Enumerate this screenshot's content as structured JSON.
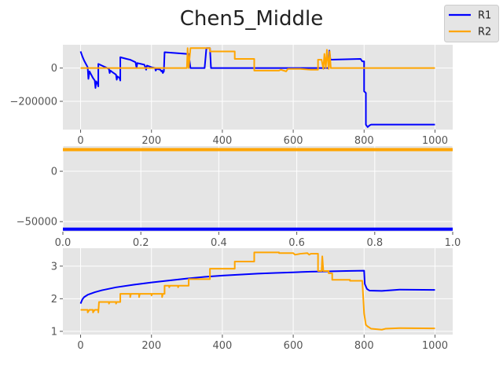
{
  "figure": {
    "title": "Chen5_Middle"
  },
  "legend": {
    "placement": "top-right",
    "entries": [
      {
        "name": "R1",
        "color": "#0000ff"
      },
      {
        "name": "R2",
        "color": "#ffa500"
      }
    ]
  },
  "chart_data": [
    {
      "type": "line",
      "panel": "top",
      "xlim": [
        -50,
        1050
      ],
      "ylim": [
        -370000,
        140000
      ],
      "xticks": [
        0,
        200,
        400,
        600,
        800,
        1000
      ],
      "yticks": [
        0,
        -200000
      ],
      "ytick_labels": [
        "0",
        "−200000"
      ],
      "grid": true,
      "series": [
        {
          "name": "R1",
          "color": "#0000ff",
          "points": [
            [
              0,
              100000
            ],
            [
              5,
              70000
            ],
            [
              10,
              45000
            ],
            [
              15,
              25000
            ],
            [
              20,
              5000
            ],
            [
              22,
              -65000
            ],
            [
              25,
              -20000
            ],
            [
              30,
              -40000
            ],
            [
              35,
              -60000
            ],
            [
              40,
              -75000
            ],
            [
              42,
              -120000
            ],
            [
              44,
              -80000
            ],
            [
              48,
              -95000
            ],
            [
              50,
              -110000
            ],
            [
              50,
              25000
            ],
            [
              60,
              15000
            ],
            [
              70,
              5000
            ],
            [
              80,
              -5000
            ],
            [
              82,
              -30000
            ],
            [
              84,
              -15000
            ],
            [
              90,
              -25000
            ],
            [
              100,
              -40000
            ],
            [
              102,
              -70000
            ],
            [
              104,
              -50000
            ],
            [
              110,
              -60000
            ],
            [
              112,
              -75000
            ],
            [
              112,
              65000
            ],
            [
              130,
              55000
            ],
            [
              140,
              50000
            ],
            [
              145,
              45000
            ],
            [
              150,
              40000
            ],
            [
              155,
              35000
            ],
            [
              158,
              0
            ],
            [
              160,
              30000
            ],
            [
              180,
              20000
            ],
            [
              185,
              -10000
            ],
            [
              187,
              15000
            ],
            [
              200,
              5000
            ],
            [
              210,
              0
            ],
            [
              212,
              -15000
            ],
            [
              215,
              -5000
            ],
            [
              225,
              -10000
            ],
            [
              228,
              -20000
            ],
            [
              230,
              -15000
            ],
            [
              232,
              -30000
            ],
            [
              235,
              -20000
            ],
            [
              237,
              95000
            ],
            [
              300,
              85000
            ],
            [
              305,
              85000
            ],
            [
              310,
              0
            ],
            [
              350,
              0
            ],
            [
              355,
              120000
            ],
            [
              365,
              120000
            ],
            [
              368,
              0
            ],
            [
              700,
              0
            ],
            [
              702,
              105000
            ],
            [
              705,
              50000
            ],
            [
              790,
              55000
            ],
            [
              795,
              40000
            ],
            [
              800,
              40000
            ],
            [
              800,
              -140000
            ],
            [
              805,
              -150000
            ],
            [
              805,
              -340000
            ],
            [
              810,
              -355000
            ],
            [
              815,
              -345000
            ],
            [
              820,
              -340000
            ],
            [
              1000,
              -340000
            ]
          ]
        },
        {
          "name": "R2",
          "color": "#ffa500",
          "points": [
            [
              0,
              0
            ],
            [
              300,
              0
            ],
            [
              302,
              120000
            ],
            [
              305,
              0
            ],
            [
              310,
              120000
            ],
            [
              365,
              120000
            ],
            [
              365,
              100000
            ],
            [
              435,
              100000
            ],
            [
              435,
              55000
            ],
            [
              460,
              55000
            ],
            [
              480,
              55000
            ],
            [
              490,
              55000
            ],
            [
              490,
              -15000
            ],
            [
              560,
              -15000
            ],
            [
              565,
              -10000
            ],
            [
              580,
              -20000
            ],
            [
              585,
              -5000
            ],
            [
              620,
              -5000
            ],
            [
              650,
              -10000
            ],
            [
              670,
              -10000
            ],
            [
              670,
              50000
            ],
            [
              680,
              50000
            ],
            [
              685,
              -5000
            ],
            [
              688,
              85000
            ],
            [
              692,
              0
            ],
            [
              695,
              110000
            ],
            [
              700,
              -5000
            ],
            [
              703,
              100000
            ],
            [
              706,
              0
            ],
            [
              710,
              0
            ],
            [
              1000,
              0
            ]
          ]
        }
      ]
    },
    {
      "type": "line",
      "panel": "middle",
      "xlim": [
        0,
        1
      ],
      "ylim": [
        -60000,
        25000
      ],
      "xticks": [
        0,
        0.2,
        0.4,
        0.6,
        0.8,
        1
      ],
      "xtick_labels": [
        "0.0",
        "0.2",
        "0.4",
        "0.6",
        "0.8",
        "1.0"
      ],
      "yticks": [
        0,
        -50000
      ],
      "ytick_labels": [
        "0",
        "−50000"
      ],
      "grid": true,
      "series": [
        {
          "name": "R1",
          "color": "#0000ff",
          "points": [
            [
              0,
              -57500
            ],
            [
              1,
              -57500
            ]
          ]
        },
        {
          "name": "R2",
          "color": "#ffa500",
          "points": [
            [
              0,
              21500
            ],
            [
              1,
              21500
            ]
          ]
        }
      ]
    },
    {
      "type": "line",
      "panel": "bottom",
      "xlim": [
        -50,
        1050
      ],
      "ylim": [
        0.9,
        3.55
      ],
      "xticks": [
        0,
        200,
        400,
        600,
        800,
        1000
      ],
      "yticks": [
        1,
        2,
        3
      ],
      "grid": true,
      "series": [
        {
          "name": "R1",
          "color": "#0000ff",
          "points": [
            [
              0,
              1.85
            ],
            [
              5,
              1.98
            ],
            [
              10,
              2.05
            ],
            [
              20,
              2.12
            ],
            [
              40,
              2.2
            ],
            [
              60,
              2.26
            ],
            [
              100,
              2.35
            ],
            [
              150,
              2.43
            ],
            [
              200,
              2.5
            ],
            [
              250,
              2.56
            ],
            [
              300,
              2.62
            ],
            [
              350,
              2.67
            ],
            [
              400,
              2.71
            ],
            [
              450,
              2.74
            ],
            [
              500,
              2.77
            ],
            [
              550,
              2.79
            ],
            [
              600,
              2.81
            ],
            [
              650,
              2.83
            ],
            [
              700,
              2.84
            ],
            [
              750,
              2.85
            ],
            [
              800,
              2.86
            ],
            [
              802,
              2.45
            ],
            [
              808,
              2.3
            ],
            [
              815,
              2.25
            ],
            [
              850,
              2.24
            ],
            [
              900,
              2.28
            ],
            [
              1000,
              2.27
            ]
          ]
        },
        {
          "name": "R2",
          "color": "#ffa500",
          "points": [
            [
              0,
              1.66
            ],
            [
              20,
              1.66
            ],
            [
              20,
              1.58
            ],
            [
              25,
              1.66
            ],
            [
              35,
              1.66
            ],
            [
              35,
              1.58
            ],
            [
              40,
              1.66
            ],
            [
              50,
              1.66
            ],
            [
              50,
              1.58
            ],
            [
              52,
              1.9
            ],
            [
              80,
              1.9
            ],
            [
              80,
              1.85
            ],
            [
              82,
              1.9
            ],
            [
              100,
              1.9
            ],
            [
              100,
              1.85
            ],
            [
              102,
              1.9
            ],
            [
              112,
              1.9
            ],
            [
              112,
              2.15
            ],
            [
              140,
              2.15
            ],
            [
              140,
              2.05
            ],
            [
              142,
              2.15
            ],
            [
              165,
              2.15
            ],
            [
              165,
              2.05
            ],
            [
              167,
              2.15
            ],
            [
              200,
              2.15
            ],
            [
              200,
              2.1
            ],
            [
              202,
              2.15
            ],
            [
              230,
              2.15
            ],
            [
              230,
              2.05
            ],
            [
              232,
              2.15
            ],
            [
              237,
              2.15
            ],
            [
              237,
              2.4
            ],
            [
              250,
              2.4
            ],
            [
              250,
              2.35
            ],
            [
              252,
              2.4
            ],
            [
              275,
              2.4
            ],
            [
              275,
              2.35
            ],
            [
              277,
              2.4
            ],
            [
              300,
              2.4
            ],
            [
              305,
              2.4
            ],
            [
              305,
              2.6
            ],
            [
              365,
              2.6
            ],
            [
              365,
              2.92
            ],
            [
              435,
              2.92
            ],
            [
              435,
              3.14
            ],
            [
              490,
              3.14
            ],
            [
              490,
              3.42
            ],
            [
              560,
              3.42
            ],
            [
              560,
              3.4
            ],
            [
              600,
              3.4
            ],
            [
              605,
              3.35
            ],
            [
              620,
              3.38
            ],
            [
              640,
              3.4
            ],
            [
              645,
              3.35
            ],
            [
              650,
              3.38
            ],
            [
              670,
              3.38
            ],
            [
              670,
              2.85
            ],
            [
              680,
              2.85
            ],
            [
              682,
              3.3
            ],
            [
              685,
              2.85
            ],
            [
              700,
              2.85
            ],
            [
              700,
              2.78
            ],
            [
              710,
              2.78
            ],
            [
              710,
              2.58
            ],
            [
              760,
              2.58
            ],
            [
              760,
              2.55
            ],
            [
              795,
              2.55
            ],
            [
              800,
              1.55
            ],
            [
              805,
              1.2
            ],
            [
              810,
              1.15
            ],
            [
              820,
              1.08
            ],
            [
              850,
              1.05
            ],
            [
              860,
              1.08
            ],
            [
              900,
              1.1
            ],
            [
              1000,
              1.09
            ]
          ]
        }
      ]
    }
  ]
}
